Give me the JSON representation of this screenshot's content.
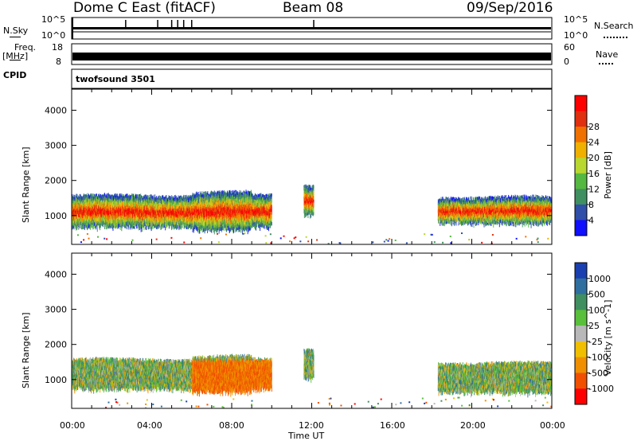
{
  "header": {
    "station": "Dome C East (fitACF)",
    "beam": "Beam 08",
    "date": "09/Sep/2016"
  },
  "top_panels": {
    "nsky_label": "N.Sky",
    "nsearch_label": "N.Search",
    "nsky_axis_ticks": [
      "10^5",
      "10^0"
    ],
    "nsearch_axis_ticks": [
      "10^5",
      "10^0"
    ],
    "freq_label": "Freq.",
    "freq_unit": "[MHz]",
    "freq_ticks": [
      "18",
      "8"
    ],
    "nave_label": "Nave",
    "nave_ticks": [
      "60",
      "0"
    ],
    "cpid_label": "CPID",
    "cpid_value": "twofsound 3501"
  },
  "chart_data": [
    {
      "type": "heatmap",
      "title": "",
      "ylabel": "Slant Range [km]",
      "yticks": [
        1000,
        2000,
        3000,
        4000
      ],
      "ylim": [
        180,
        4600
      ],
      "xlim": [
        0,
        24
      ],
      "colorbar_label": "Power [dB]",
      "colorbar_ticks": [
        "4",
        "8",
        "12",
        "16",
        "20",
        "24",
        "28"
      ],
      "colorbar_colors": [
        "#1010ff",
        "#2f4fa8",
        "#3f8f60",
        "#55b840",
        "#b8d830",
        "#f0b000",
        "#f07000",
        "#e03010",
        "#ff0000"
      ],
      "regions": [
        {
          "t0": 0.0,
          "t1": 10.0,
          "r0": 650,
          "r1": 1500,
          "level": "high"
        },
        {
          "t0": 11.6,
          "t1": 12.1,
          "r0": 1000,
          "r1": 1800,
          "level": "high"
        },
        {
          "t0": 18.3,
          "t1": 24.0,
          "r0": 750,
          "r1": 1450,
          "level": "high"
        }
      ]
    },
    {
      "type": "heatmap",
      "title": "",
      "ylabel": "Slant Range [km]",
      "xlabel": "Time UT",
      "xticks": [
        "00:00",
        "04:00",
        "08:00",
        "12:00",
        "16:00",
        "20:00",
        "00:00"
      ],
      "yticks": [
        1000,
        2000,
        3000,
        4000
      ],
      "ylim": [
        180,
        4600
      ],
      "xlim": [
        0,
        24
      ],
      "colorbar_label": "Velocity [m s^-1]",
      "colorbar_ticks": [
        "1000",
        "500",
        "100",
        "25",
        "-25",
        "-100",
        "-500",
        "-1000"
      ],
      "colorbar_colors": [
        "#1a3fb0",
        "#2f6f9f",
        "#3f8f60",
        "#58c03a",
        "#b8b8b8",
        "#f0c000",
        "#f09000",
        "#f05000",
        "#ff0000"
      ],
      "regions": [
        {
          "t0": 0.0,
          "t1": 10.0,
          "r0": 700,
          "r1": 1500,
          "level": "mixed"
        },
        {
          "t0": 11.6,
          "t1": 12.1,
          "r0": 1000,
          "r1": 1800,
          "level": "mixed"
        },
        {
          "t0": 18.3,
          "t1": 24.0,
          "r0": 600,
          "r1": 1400,
          "level": "mixed"
        }
      ]
    }
  ]
}
